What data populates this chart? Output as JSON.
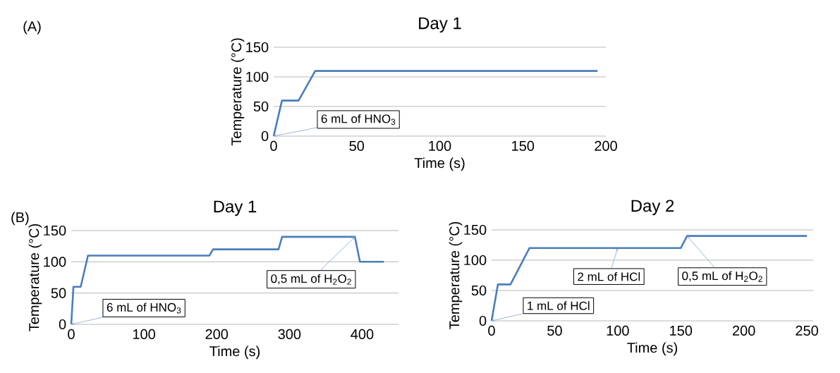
{
  "chart_data": [
    {
      "type": "line",
      "title": "Day 1",
      "xlabel": "Time (s)",
      "ylabel": "Temperature (°C)",
      "color": "#4a7ebb",
      "x": [
        0,
        5,
        15,
        25,
        195
      ],
      "values": [
        0,
        60,
        60,
        110,
        110
      ],
      "xlim": [
        0,
        200
      ],
      "xticks": [
        0,
        50,
        100,
        150,
        200
      ],
      "ylim": [
        0,
        150
      ],
      "yticks": [
        0,
        50,
        100,
        150
      ],
      "grid": "y",
      "annotations": [
        "(A)",
        {
          "text": "6 mL of HNO$_{3}$",
          "x": 0,
          "y": 0
        }
      ]
    },
    {
      "type": "line",
      "title": "Day 1",
      "xlabel": "Time (s)",
      "ylabel": "Temperature (°C)",
      "color": "#4a7ebb",
      "x": [
        0,
        3,
        13,
        23,
        190,
        195,
        285,
        290,
        390,
        397,
        430
      ],
      "values": [
        0,
        60,
        60,
        110,
        110,
        120,
        120,
        140,
        140,
        100,
        100
      ],
      "xlim": [
        0,
        450
      ],
      "xticks": [
        0,
        100,
        200,
        300,
        400
      ],
      "ylim": [
        0,
        150
      ],
      "yticks": [
        0,
        50,
        100,
        150
      ],
      "grid": "y",
      "annotations": [
        "(B)",
        {
          "text": "6 mL of HNO$_{3}$",
          "x": 0,
          "y": 0
        },
        {
          "text": "0,5 mL of H$_{2}$O$_{2}$",
          "x": 390,
          "y": 140
        }
      ]
    },
    {
      "type": "line",
      "title": "Day 2",
      "xlabel": "Time (s)",
      "ylabel": "Temperature (°C)",
      "color": "#4a7ebb",
      "x": [
        0,
        5,
        15,
        30,
        150,
        155,
        250
      ],
      "values": [
        0,
        60,
        60,
        120,
        120,
        140,
        140
      ],
      "xlim": [
        0,
        255
      ],
      "xticks": [
        0,
        50,
        100,
        150,
        200,
        250
      ],
      "ylim": [
        0,
        150
      ],
      "yticks": [
        0,
        50,
        100,
        150
      ],
      "grid": "y",
      "annotations": [
        {
          "text": "1 mL of HCl",
          "x": 0,
          "y": 0
        },
        {
          "text": "2 mL of HCl",
          "x": 100,
          "y": 120
        },
        {
          "text": "0,5 mL of H$_{2}$O$_{2}$",
          "x": 155,
          "y": 140
        }
      ]
    }
  ]
}
